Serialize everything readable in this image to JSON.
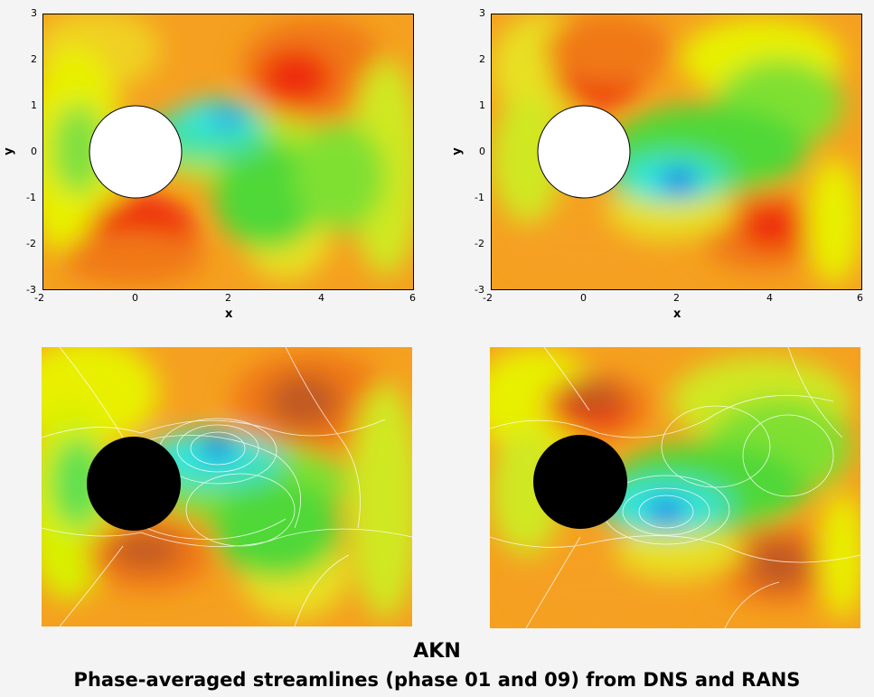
{
  "panels": [
    {
      "id": "dns-phase-01",
      "axis_labels": {
        "x": "x",
        "y": "y"
      },
      "x_ticks": [
        "-2",
        "0",
        "2",
        "4",
        "6"
      ],
      "y_ticks": [
        "3",
        "2",
        "1",
        "0",
        "-1",
        "-2",
        "-3"
      ],
      "cylinder_color": "#ffffff",
      "style": "dns"
    },
    {
      "id": "dns-phase-09",
      "axis_labels": {
        "x": "x",
        "y": "y"
      },
      "x_ticks": [
        "-2",
        "0",
        "2",
        "4",
        "6"
      ],
      "y_ticks": [
        "3",
        "2",
        "1",
        "0",
        "-1",
        "-2",
        "-3"
      ],
      "cylinder_color": "#ffffff",
      "style": "dns"
    },
    {
      "id": "rans-phase-01",
      "cylinder_color": "#000000",
      "style": "rans"
    },
    {
      "id": "rans-phase-09",
      "cylinder_color": "#000000",
      "style": "rans"
    }
  ],
  "caption": {
    "title": "AKN",
    "subtitle": "Phase-averaged streamlines (phase 01 and 09) from DNS and RANS"
  },
  "colors": {
    "background_field": "#f5a020",
    "high_red": "#ee2a10",
    "orange": "#f07818",
    "yellow": "#e8f000",
    "yellow_green": "#b8e820",
    "green": "#50d838",
    "cyan": "#30e8e0",
    "blue": "#1030e8",
    "frame": "#000000"
  }
}
